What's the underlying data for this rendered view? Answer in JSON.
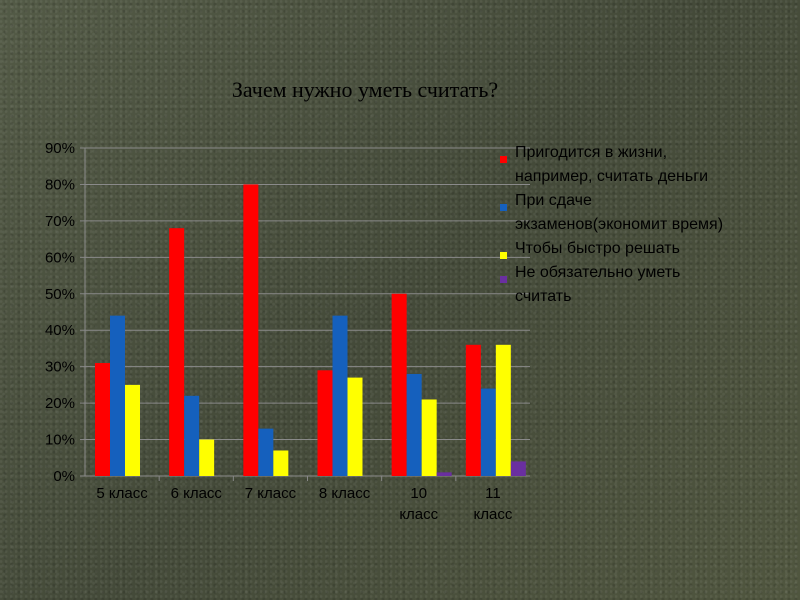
{
  "chart_data": {
    "type": "bar",
    "title": "Зачем нужно уметь считать?",
    "categories": [
      [
        "5 класс"
      ],
      [
        "6 класс"
      ],
      [
        "7 класс"
      ],
      [
        "8 класс"
      ],
      [
        "10",
        "класс"
      ],
      [
        "11",
        "класс"
      ]
    ],
    "y_ticks": [
      "0%",
      "10%",
      "20%",
      "30%",
      "40%",
      "50%",
      "60%",
      "70%",
      "80%",
      "90%"
    ],
    "ylim": [
      0,
      90
    ],
    "grid": true,
    "legend_position": "right",
    "series": [
      {
        "name": "Пригодится в жизни, например, считать деньги",
        "legend_lines": [
          "Пригодится в жизни,",
          "например, считать деньги"
        ],
        "color": "#ff0000",
        "values": [
          31,
          68,
          80,
          29,
          50,
          36
        ]
      },
      {
        "name": "При сдаче экзаменов(экономит время)",
        "legend_lines": [
          "При сдаче",
          "экзаменов(экономит время)"
        ],
        "color": "#1560bd",
        "values": [
          44,
          22,
          13,
          44,
          28,
          24
        ]
      },
      {
        "name": "Чтобы быстро решать",
        "legend_lines": [
          "Чтобы быстро решать"
        ],
        "color": "#ffff00",
        "values": [
          25,
          10,
          7,
          27,
          21,
          36
        ]
      },
      {
        "name": "Не обязательно уметь считать",
        "legend_lines": [
          "Не обязательно уметь",
          "считать"
        ],
        "color": "#6a2fa0",
        "values": [
          0,
          0,
          0,
          0,
          1,
          4
        ]
      }
    ]
  }
}
